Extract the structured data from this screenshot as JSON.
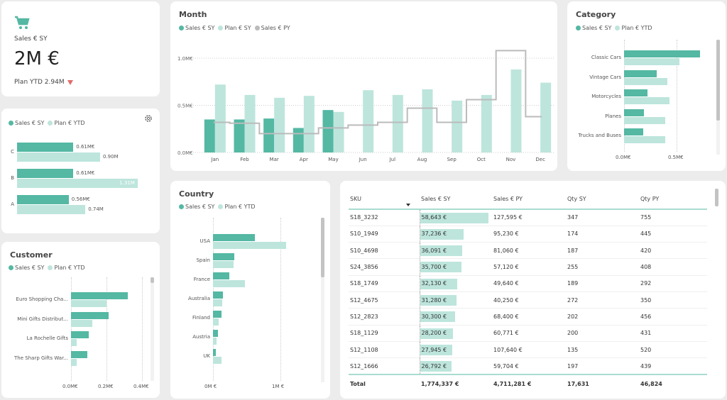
{
  "kpi": {
    "icon": "shopping-cart-icon",
    "label": "Sales € SY",
    "value": "2M €",
    "plan_text": "Plan YTD 2.94M",
    "trend": "down",
    "trend_color": "#e06c6c"
  },
  "colors": {
    "sales_sy": "#54b8a3",
    "plan": "#bde5dc",
    "sales_py": "#bbbbbb"
  },
  "abc": {
    "legend": [
      "Sales € SY",
      "Plan € YTD"
    ],
    "settings_icon": "gear-icon",
    "chart_data": {
      "type": "bar",
      "orientation": "horizontal",
      "categories": [
        "C",
        "B",
        "A"
      ],
      "series": [
        {
          "name": "Sales € SY",
          "values": [
            0.61,
            0.61,
            0.56
          ],
          "labels": [
            "0.61M€",
            "0.61M€",
            "0.56M€"
          ]
        },
        {
          "name": "Plan € YTD",
          "values": [
            0.9,
            1.31,
            0.74
          ],
          "labels": [
            "0.90M",
            "1.31M",
            "0.74M"
          ]
        }
      ],
      "xlim": [
        0,
        1.4
      ]
    }
  },
  "customer": {
    "title": "Customer",
    "legend": [
      "Sales € SY",
      "Plan € YTD"
    ],
    "chart_data": {
      "type": "bar",
      "orientation": "horizontal",
      "title": "Customer",
      "categories": [
        "Euro Shopping Cha...",
        "Mini Gifts Distribut...",
        "La Rochelle Gifts",
        "The Sharp Gifts War..."
      ],
      "series": [
        {
          "name": "Sales € SY",
          "values": [
            0.32,
            0.21,
            0.1,
            0.09
          ]
        },
        {
          "name": "Plan € YTD",
          "values": [
            0.2,
            0.12,
            0.03,
            0.03
          ]
        }
      ],
      "xticks": [
        "0.0M€",
        "0.2M€",
        "0.4M€"
      ],
      "xlim": [
        0,
        0.4
      ]
    }
  },
  "month": {
    "title": "Month",
    "legend": [
      "Sales € SY",
      "Plan € SY",
      "Sales € PY"
    ],
    "chart_data": {
      "type": "bar",
      "title": "Month",
      "categories": [
        "Jan",
        "Feb",
        "Mar",
        "Apr",
        "May",
        "Jun",
        "Jul",
        "Aug",
        "Sep",
        "Oct",
        "Nov",
        "Dec"
      ],
      "series": [
        {
          "name": "Sales € SY",
          "type": "bar",
          "values": [
            0.35,
            0.35,
            0.36,
            0.26,
            0.45,
            null,
            null,
            null,
            null,
            null,
            null,
            null
          ]
        },
        {
          "name": "Plan € SY",
          "type": "bar",
          "values": [
            0.72,
            0.61,
            0.58,
            0.6,
            0.43,
            0.66,
            0.61,
            0.67,
            0.55,
            0.61,
            0.88,
            0.74
          ]
        },
        {
          "name": "Sales € PY",
          "type": "step-line",
          "values": [
            0.32,
            0.31,
            0.2,
            0.2,
            0.26,
            0.29,
            0.32,
            0.47,
            0.32,
            0.56,
            1.08,
            0.38
          ]
        }
      ],
      "yticks": [
        "0.0M€",
        "0.5M€",
        "1.0M€"
      ],
      "ylim": [
        0,
        1.0
      ],
      "grid": true
    }
  },
  "category": {
    "title": "Category",
    "legend": [
      "Sales € SY",
      "Plan € YTD"
    ],
    "chart_data": {
      "type": "bar",
      "orientation": "horizontal",
      "title": "Category",
      "categories": [
        "Classic Cars",
        "Vintage Cars",
        "Motorcycles",
        "Planes",
        "Trucks and Buses"
      ],
      "series": [
        {
          "name": "Sales € SY",
          "values": [
            0.72,
            0.31,
            0.22,
            0.19,
            0.18
          ]
        },
        {
          "name": "Plan € YTD",
          "values": [
            0.53,
            0.41,
            0.43,
            0.39,
            0.39
          ]
        }
      ],
      "xticks": [
        "0.0M€",
        "0.5M€"
      ],
      "xlim": [
        0,
        0.8
      ]
    }
  },
  "country": {
    "title": "Country",
    "legend": [
      "Sales € SY",
      "Plan € YTD"
    ],
    "chart_data": {
      "type": "bar",
      "orientation": "horizontal",
      "title": "Country",
      "categories": [
        "USA",
        "Spain",
        "France",
        "Australia",
        "Finland",
        "Austria",
        "UK"
      ],
      "series": [
        {
          "name": "Sales € SY",
          "values": [
            0.62,
            0.32,
            0.24,
            0.15,
            0.13,
            0.07,
            0.04
          ]
        },
        {
          "name": "Plan € YTD",
          "values": [
            1.08,
            0.3,
            0.47,
            0.14,
            0.08,
            0.05,
            0.13
          ]
        }
      ],
      "xticks": [
        "0M €",
        "1M €"
      ],
      "xlim": [
        0,
        1.1
      ]
    }
  },
  "table": {
    "columns": [
      "SKU",
      "Sales € SY",
      "Sales € PY",
      "Qty SY",
      "Qty PY"
    ],
    "sort_column": "Sales € SY",
    "sort_direction": "descending",
    "rows": [
      {
        "sku": "S18_3232",
        "sales_sy": "58,643 €",
        "sales_sy_value": 58643,
        "sales_py": "127,595 €",
        "qty_sy": "347",
        "qty_py": "755"
      },
      {
        "sku": "S10_1949",
        "sales_sy": "37,236 €",
        "sales_sy_value": 37236,
        "sales_py": "95,230 €",
        "qty_sy": "174",
        "qty_py": "445"
      },
      {
        "sku": "S10_4698",
        "sales_sy": "36,091 €",
        "sales_sy_value": 36091,
        "sales_py": "81,060 €",
        "qty_sy": "187",
        "qty_py": "420"
      },
      {
        "sku": "S24_3856",
        "sales_sy": "35,700 €",
        "sales_sy_value": 35700,
        "sales_py": "57,120 €",
        "qty_sy": "255",
        "qty_py": "408"
      },
      {
        "sku": "S18_1749",
        "sales_sy": "32,130 €",
        "sales_sy_value": 32130,
        "sales_py": "49,640 €",
        "qty_sy": "189",
        "qty_py": "292"
      },
      {
        "sku": "S12_4675",
        "sales_sy": "31,280 €",
        "sales_sy_value": 31280,
        "sales_py": "40,250 €",
        "qty_sy": "272",
        "qty_py": "350"
      },
      {
        "sku": "S12_2823",
        "sales_sy": "30,300 €",
        "sales_sy_value": 30300,
        "sales_py": "68,400 €",
        "qty_sy": "202",
        "qty_py": "456"
      },
      {
        "sku": "S18_1129",
        "sales_sy": "28,200 €",
        "sales_sy_value": 28200,
        "sales_py": "60,771 €",
        "qty_sy": "200",
        "qty_py": "431"
      },
      {
        "sku": "S12_1108",
        "sales_sy": "27,945 €",
        "sales_sy_value": 27945,
        "sales_py": "107,640 €",
        "qty_sy": "135",
        "qty_py": "520"
      },
      {
        "sku": "S12_1666",
        "sales_sy": "26,792 €",
        "sales_sy_value": 26792,
        "sales_py": "59,704 €",
        "qty_sy": "197",
        "qty_py": "439"
      }
    ],
    "total": {
      "label": "Total",
      "sales_sy": "1,774,337 €",
      "sales_py": "4,711,281 €",
      "qty_sy": "17,631",
      "qty_py": "46,824"
    }
  }
}
